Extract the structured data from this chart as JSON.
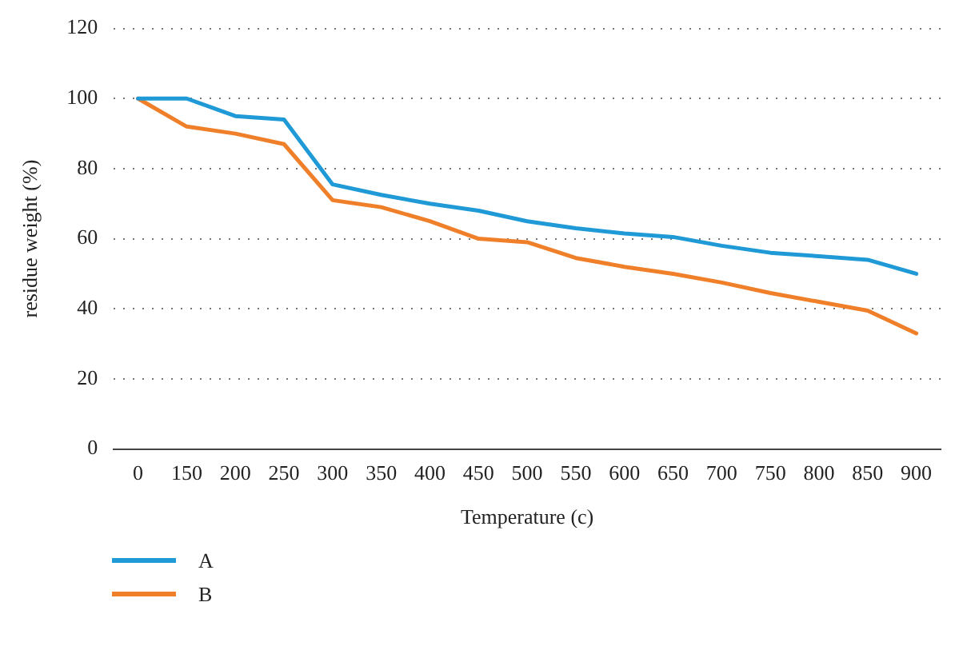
{
  "chart_data": {
    "type": "line",
    "xlabel": "Temperature (c)",
    "ylabel": "residue weight (%)",
    "categories": [
      "0",
      "150",
      "200",
      "250",
      "300",
      "350",
      "400",
      "450",
      "500",
      "550",
      "600",
      "650",
      "700",
      "750",
      "800",
      "850",
      "900"
    ],
    "series": [
      {
        "name": "A",
        "color": "#1f9ad6",
        "values": [
          100,
          100,
          95,
          94,
          75.5,
          72.5,
          70,
          68,
          65,
          63,
          61.5,
          60.5,
          58,
          56,
          55,
          54,
          50
        ]
      },
      {
        "name": "B",
        "color": "#f07f2a",
        "values": [
          100,
          92,
          90,
          87,
          71,
          69,
          65,
          60,
          59,
          54.5,
          52,
          50,
          47.5,
          44.5,
          42,
          39.5,
          33
        ]
      }
    ],
    "ylim": [
      0,
      120
    ],
    "yticks": [
      0,
      20,
      40,
      60,
      80,
      100,
      120
    ],
    "grid": "y",
    "legend": "bottom left",
    "marker": "none",
    "line_style": "solid"
  }
}
